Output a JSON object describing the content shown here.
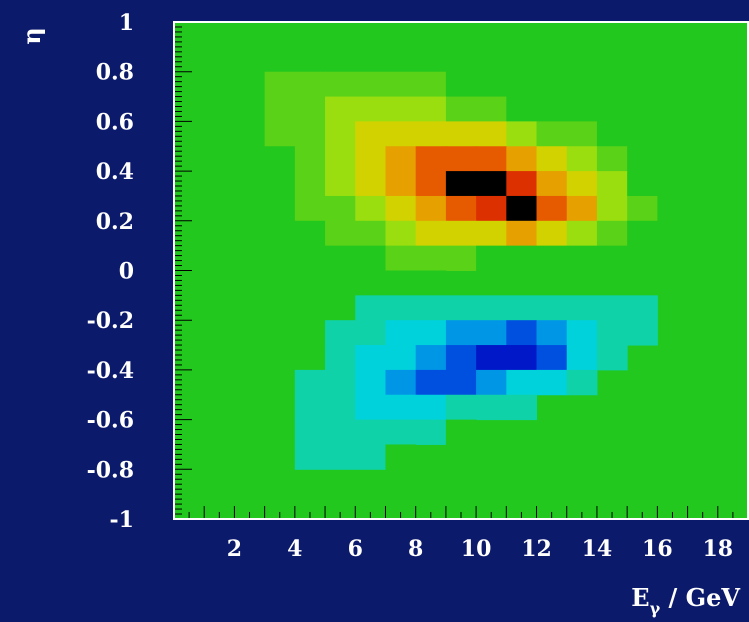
{
  "chart_data": {
    "type": "heatmap",
    "title": "",
    "xlabel": "E",
    "xlabel_subscript": "γ",
    "xlabel_unit": " / GeV",
    "ylabel": "η",
    "xlim": [
      0,
      19
    ],
    "ylim": [
      -1,
      1
    ],
    "x_ticks": [
      2,
      4,
      6,
      8,
      10,
      12,
      14,
      16,
      18
    ],
    "x_tick_labels": [
      "2",
      "4",
      "6",
      "8",
      "10",
      "12",
      "14",
      "16",
      "18"
    ],
    "y_ticks": [
      1,
      0.8,
      0.6,
      0.4,
      0.2,
      0,
      -0.2,
      -0.4,
      -0.6,
      -0.8,
      -1
    ],
    "y_tick_labels": [
      "1",
      "0.8",
      "0.6",
      "0.4",
      "0.2",
      "0",
      "-0.2",
      "-0.4",
      "-0.6",
      "-0.8",
      "-1"
    ],
    "grid": false,
    "colors": {
      "background": "#0c1a6c",
      "frame": "#ffffff",
      "plot_zero": "#22c81e"
    },
    "colormap": [
      [
        -0.95,
        "#0018c8"
      ],
      [
        -0.75,
        "#0050e0"
      ],
      [
        -0.55,
        "#0096e6"
      ],
      [
        -0.35,
        "#00d2dc"
      ],
      [
        -0.15,
        "#10d2a8"
      ],
      [
        0.05,
        "#22c81e"
      ],
      [
        0.2,
        "#5ad218"
      ],
      [
        0.35,
        "#9ade10"
      ],
      [
        0.5,
        "#d2d200"
      ],
      [
        0.65,
        "#e6a000"
      ],
      [
        0.8,
        "#e65a00"
      ],
      [
        0.92,
        "#dc3000"
      ],
      [
        1.0,
        "#000000"
      ]
    ],
    "bin_width_x": 1,
    "bin_height_y": 0.1,
    "x_bins_start": 0,
    "value_rows": [
      {
        "y": 0.8,
        "cells": [
          0,
          0,
          0,
          0.12,
          0.12,
          0.12,
          0.1,
          0.08,
          0.05,
          0.02,
          0,
          0,
          0,
          0,
          0,
          0,
          0,
          0,
          0
        ]
      },
      {
        "y": 0.7,
        "cells": [
          0,
          0,
          0,
          0.14,
          0.17,
          0.2,
          0.2,
          0.18,
          0.14,
          0.1,
          0.06,
          0.03,
          0,
          0,
          0,
          0,
          0,
          0,
          0
        ]
      },
      {
        "y": 0.6,
        "cells": [
          0,
          0,
          0,
          0.15,
          0.22,
          0.28,
          0.34,
          0.34,
          0.3,
          0.24,
          0.18,
          0.12,
          0.07,
          0.03,
          0,
          0,
          0,
          0,
          0
        ]
      },
      {
        "y": 0.5,
        "cells": [
          0,
          0,
          0,
          0.15,
          0.24,
          0.34,
          0.44,
          0.55,
          0.56,
          0.52,
          0.44,
          0.35,
          0.24,
          0.15,
          0.08,
          0,
          0,
          0,
          0
        ]
      },
      {
        "y": 0.4,
        "cells": [
          0,
          0,
          0,
          0.12,
          0.24,
          0.36,
          0.52,
          0.7,
          0.78,
          0.82,
          0.74,
          0.62,
          0.48,
          0.34,
          0.18,
          0.06,
          0,
          0,
          0
        ]
      },
      {
        "y": 0.3,
        "cells": [
          0,
          0,
          0,
          0.1,
          0.2,
          0.32,
          0.5,
          0.66,
          0.86,
          0.97,
          0.97,
          0.92,
          0.68,
          0.48,
          0.28,
          0.1,
          0,
          0,
          0
        ]
      },
      {
        "y": 0.2,
        "cells": [
          0,
          0,
          0,
          0.08,
          0.14,
          0.24,
          0.36,
          0.52,
          0.7,
          0.86,
          0.96,
          0.97,
          0.86,
          0.6,
          0.36,
          0.16,
          0.06,
          0,
          0
        ]
      },
      {
        "y": 0.1,
        "cells": [
          0,
          0,
          0,
          0.05,
          0.1,
          0.16,
          0.24,
          0.34,
          0.44,
          0.52,
          0.56,
          0.58,
          0.52,
          0.4,
          0.22,
          0.08,
          0,
          0,
          0
        ]
      },
      {
        "y": 0.0,
        "cells": [
          0,
          0,
          0,
          0.05,
          0.07,
          0.1,
          0.12,
          0.14,
          0.14,
          0.13,
          0.12,
          0.1,
          0.08,
          0.06,
          0.03,
          0,
          0,
          0,
          0
        ]
      },
      {
        "y": -0.1,
        "cells": [
          0,
          0,
          0,
          0.04,
          0.05,
          0.06,
          0.05,
          0.04,
          0.02,
          0,
          0,
          0,
          0,
          0,
          0,
          0,
          0,
          0,
          0
        ]
      },
      {
        "y": -0.2,
        "cells": [
          0,
          0,
          0,
          0,
          0,
          0,
          -0.05,
          -0.1,
          -0.14,
          -0.17,
          -0.2,
          -0.22,
          -0.24,
          -0.2,
          -0.12,
          -0.05,
          0,
          0,
          0
        ]
      },
      {
        "y": -0.3,
        "cells": [
          0,
          0,
          0,
          0,
          0,
          -0.08,
          -0.18,
          -0.3,
          -0.44,
          -0.56,
          -0.64,
          -0.7,
          -0.62,
          -0.4,
          -0.22,
          -0.08,
          0,
          0,
          0
        ]
      },
      {
        "y": -0.4,
        "cells": [
          0,
          0,
          0,
          0,
          0,
          -0.12,
          -0.26,
          -0.42,
          -0.64,
          -0.82,
          -0.92,
          -0.86,
          -0.66,
          -0.38,
          -0.18,
          0,
          0,
          0,
          0
        ]
      },
      {
        "y": -0.5,
        "cells": [
          0,
          0,
          0,
          0,
          -0.06,
          -0.18,
          -0.34,
          -0.52,
          -0.7,
          -0.72,
          -0.62,
          -0.44,
          -0.26,
          -0.12,
          0,
          0,
          0,
          0,
          0
        ]
      },
      {
        "y": -0.6,
        "cells": [
          0,
          0,
          0,
          0,
          -0.1,
          -0.24,
          -0.36,
          -0.38,
          -0.32,
          -0.22,
          -0.14,
          -0.06,
          0,
          0,
          0,
          0,
          0,
          0,
          0
        ]
      },
      {
        "y": -0.7,
        "cells": [
          0,
          0,
          0,
          0,
          -0.1,
          -0.16,
          -0.16,
          -0.12,
          -0.08,
          -0.04,
          0,
          0,
          0,
          0,
          0,
          0,
          0,
          0,
          0
        ]
      },
      {
        "y": -0.8,
        "cells": [
          0,
          0,
          0,
          0,
          -0.06,
          -0.07,
          -0.06,
          -0.04,
          0,
          0,
          0,
          0,
          0,
          0,
          0,
          0,
          0,
          0,
          0
        ]
      }
    ]
  }
}
